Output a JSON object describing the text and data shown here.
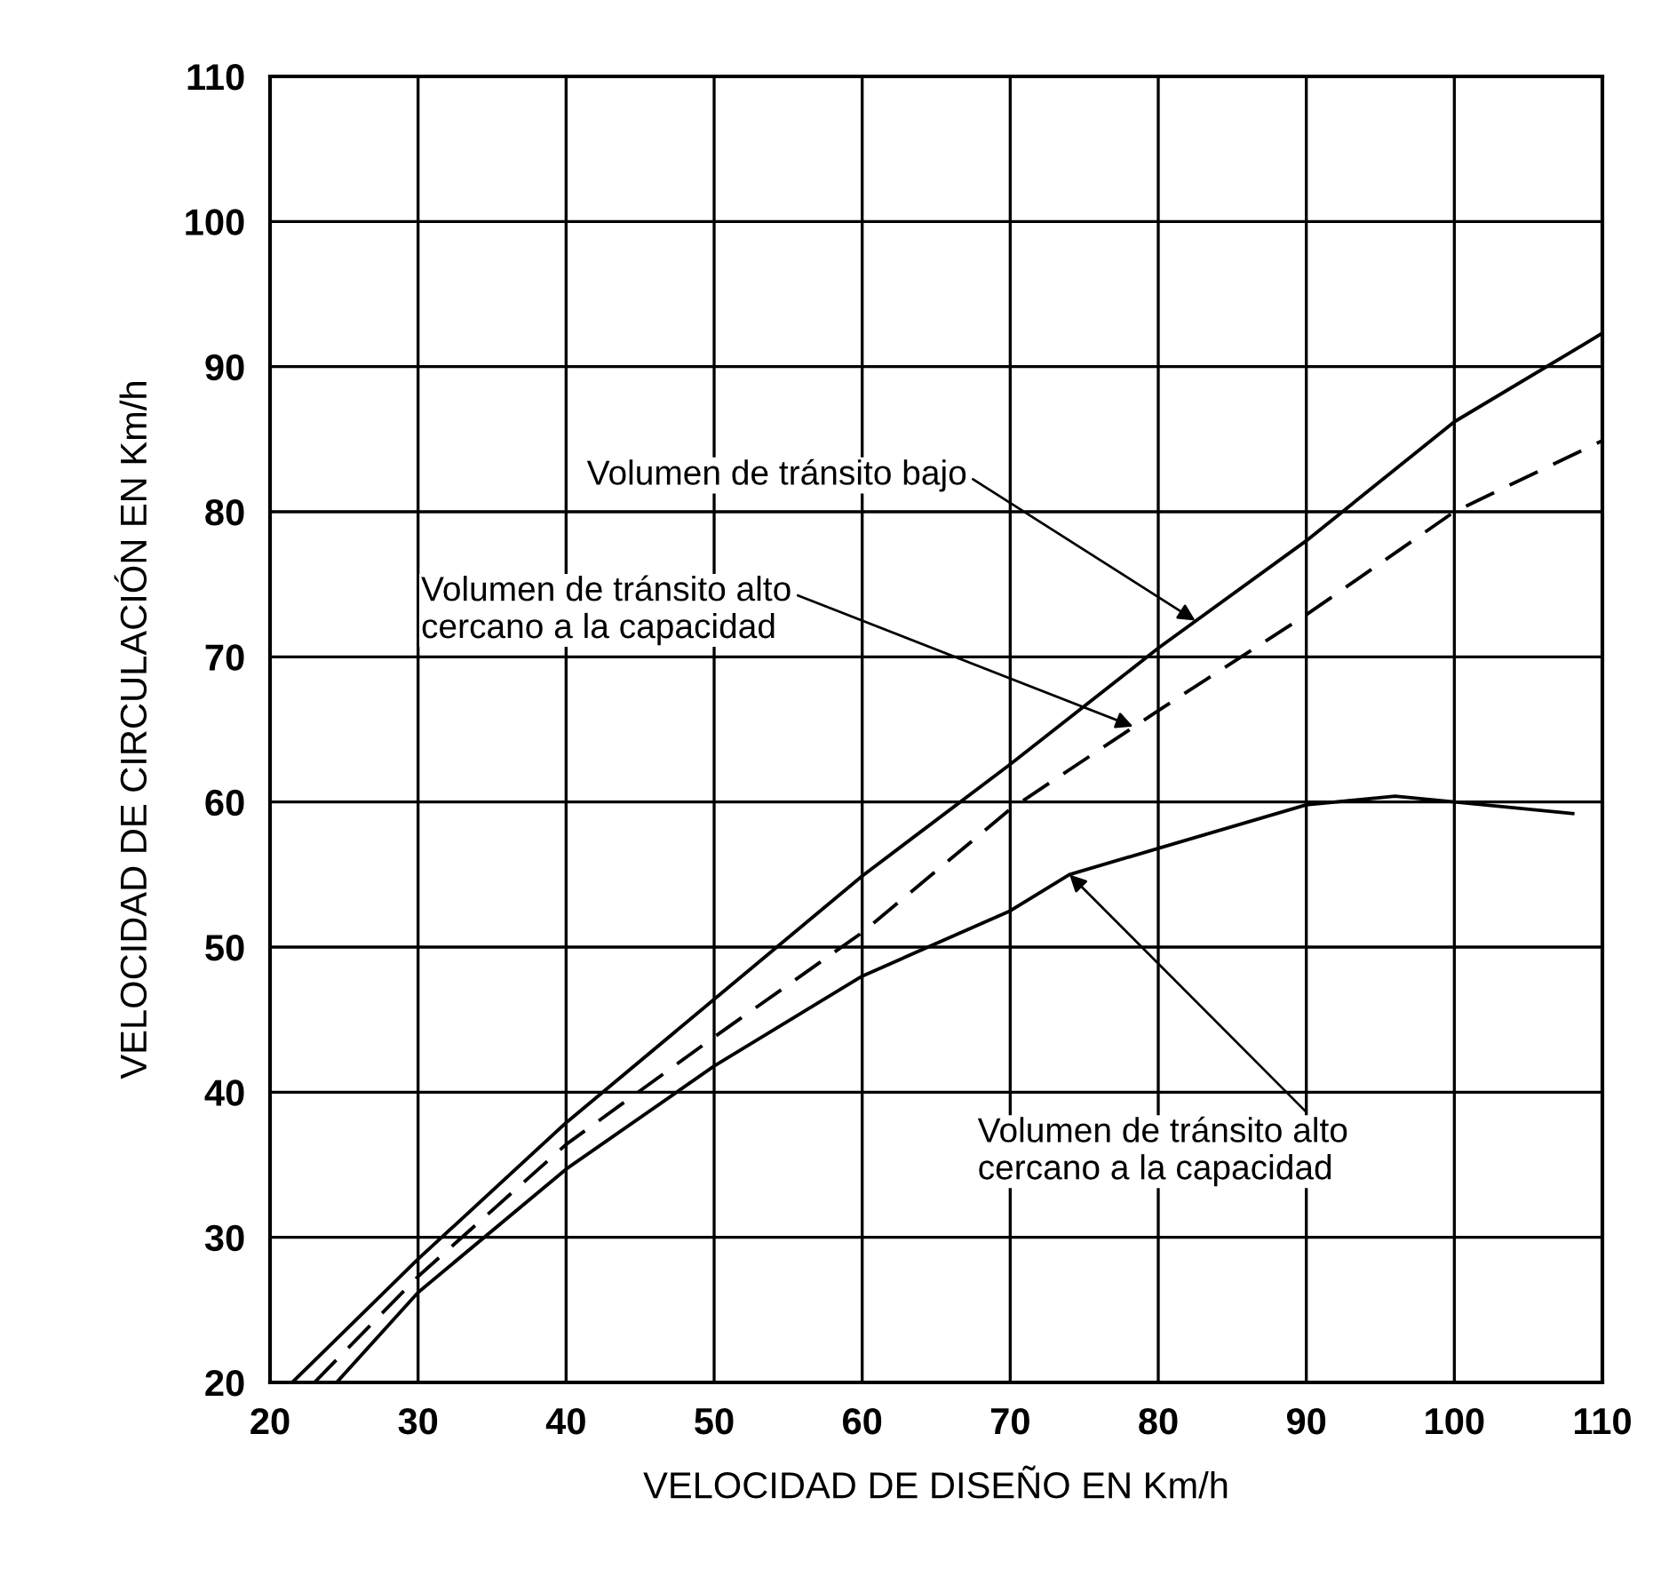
{
  "chart_data": {
    "type": "line",
    "xlabel": "VELOCIDAD DE DISEÑO EN Km/h",
    "ylabel": "VELOCIDAD DE CIRCULACIÓN EN Km/h",
    "xlim": [
      20,
      110
    ],
    "ylim": [
      20,
      110
    ],
    "xticks": [
      20,
      30,
      40,
      50,
      60,
      70,
      80,
      90,
      100,
      110
    ],
    "yticks": [
      20,
      30,
      40,
      50,
      60,
      70,
      80,
      90,
      100,
      110
    ],
    "grid": true,
    "marker": "none",
    "series": [
      {
        "color": "#000000",
        "line_style": "solid",
        "x": [
          21.5,
          30,
          40,
          50,
          60,
          70,
          80,
          90,
          100,
          110
        ],
        "values": [
          20,
          28.5,
          37.9,
          46.4,
          54.9,
          62.6,
          70.6,
          78,
          86.2,
          92.3
        ]
      },
      {
        "color": "#000000",
        "line_style": "dashed",
        "x": [
          23,
          30,
          40,
          50,
          60,
          70,
          80,
          90,
          100,
          110
        ],
        "values": [
          20,
          27.3,
          36.4,
          43.8,
          51,
          59.5,
          66.3,
          72.9,
          80,
          84.9
        ]
      },
      {
        "color": "#000000",
        "line_style": "solid",
        "x": [
          24.5,
          30,
          40,
          50,
          60,
          70,
          74,
          80,
          90,
          96,
          100,
          108
        ],
        "values": [
          20,
          26.2,
          34.7,
          41.8,
          48,
          52.5,
          55,
          56.8,
          59.8,
          60.4,
          60,
          59.2
        ]
      }
    ],
    "annotations": [
      {
        "text": "Volumen de tránsito bajo",
        "x": 82.5,
        "y": 72.5
      },
      {
        "text": "Volumen de tránsito alto\ncercano a la capacidad",
        "x": 78.3,
        "y": 65.2
      },
      {
        "text": "Volumen de tránsito alto\ncercano a la capacidad",
        "x": 74,
        "y": 55
      }
    ]
  }
}
